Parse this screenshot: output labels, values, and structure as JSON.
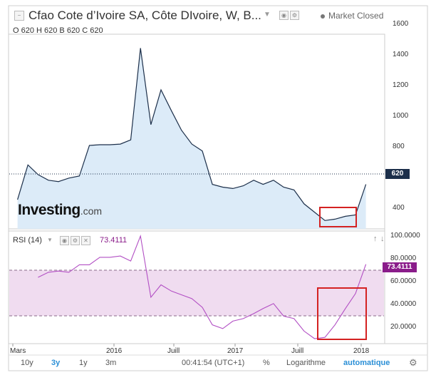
{
  "header": {
    "title": "Cfao Cote d’Ivoire SA, Côte DIvoire, W, B...",
    "ohlc": "O 620 H 620 B 620 C 620",
    "market_status": "Market Closed"
  },
  "rsi": {
    "label": "RSI (14)",
    "value": "73.4111",
    "badge": "73.4111"
  },
  "price_badge": "620",
  "logo": {
    "main": "Investing",
    "suffix": ".com"
  },
  "price_axis": [
    "1600",
    "1400",
    "1200",
    "1000",
    "800",
    "400"
  ],
  "rsi_axis": [
    "100.0000",
    "80.0000",
    "60.0000",
    "40.0000",
    "20.0000"
  ],
  "x_axis": [
    "Mars",
    "2016",
    "Juill",
    "2017",
    "Juill",
    "2018"
  ],
  "toolbar": {
    "periods": [
      "10y",
      "3y",
      "1y",
      "3m"
    ],
    "active_period": "3y",
    "clock": "00:41:54 (UTC+1)",
    "percent": "%",
    "log": "Logarithme",
    "auto": "automatique"
  },
  "icons": [
    "chart-toggle-icon",
    "dropdown-caret-icon",
    "settings-icon",
    "close-icon",
    "gear-icon",
    "pin-icon"
  ],
  "colors": {
    "price_line": "#1c2f4a",
    "price_fill": "#dcebf8",
    "rsi_line": "#b24fc4",
    "rsi_band": "#f0dcf0",
    "highlight_box": "#d42222",
    "active": "#2b8fd6"
  },
  "chart_data": [
    {
      "type": "area",
      "series_name": "Cfao Cote d’Ivoire SA",
      "x": [
        "2015-03",
        "2015-04",
        "2015-05",
        "2015-06",
        "2015-07",
        "2015-08",
        "2015-09",
        "2015-10",
        "2015-11",
        "2015-12",
        "2016-01",
        "2016-02",
        "2016-03",
        "2016-04",
        "2016-05",
        "2016-06",
        "2016-07",
        "2016-08",
        "2016-09",
        "2016-10",
        "2016-11",
        "2016-12",
        "2017-01",
        "2017-02",
        "2017-03",
        "2017-04",
        "2017-05",
        "2017-06",
        "2017-07",
        "2017-08",
        "2017-09",
        "2017-10",
        "2017-11",
        "2017-12",
        "2018-01"
      ],
      "values": [
        510,
        760,
        690,
        650,
        640,
        665,
        680,
        900,
        905,
        905,
        910,
        940,
        1600,
        1050,
        1300,
        1150,
        1010,
        910,
        860,
        620,
        600,
        590,
        610,
        650,
        620,
        650,
        600,
        580,
        480,
        420,
        360,
        370,
        390,
        400,
        620
      ],
      "ylim": [
        300,
        1700
      ],
      "last_close": 620
    },
    {
      "type": "line",
      "series_name": "RSI (14)",
      "x": [
        "2015-05",
        "2015-06",
        "2015-07",
        "2015-08",
        "2015-09",
        "2015-10",
        "2015-11",
        "2015-12",
        "2016-01",
        "2016-02",
        "2016-03",
        "2016-04",
        "2016-05",
        "2016-06",
        "2016-07",
        "2016-08",
        "2016-09",
        "2016-10",
        "2016-11",
        "2016-12",
        "2017-01",
        "2017-02",
        "2017-03",
        "2017-04",
        "2017-05",
        "2017-06",
        "2017-07",
        "2017-08",
        "2017-09",
        "2017-10",
        "2017-11",
        "2017-12",
        "2018-01"
      ],
      "values": [
        63,
        67,
        68,
        67,
        73,
        73,
        79,
        79,
        80,
        76,
        96,
        47,
        57,
        52,
        49,
        46,
        39,
        25,
        22,
        28,
        30,
        34,
        38,
        42,
        32,
        30,
        20,
        14,
        15,
        25,
        38,
        50,
        73.4111
      ],
      "ylim": [
        10,
        100
      ],
      "bands": [
        30,
        70
      ],
      "last_value": 73.4111
    }
  ]
}
